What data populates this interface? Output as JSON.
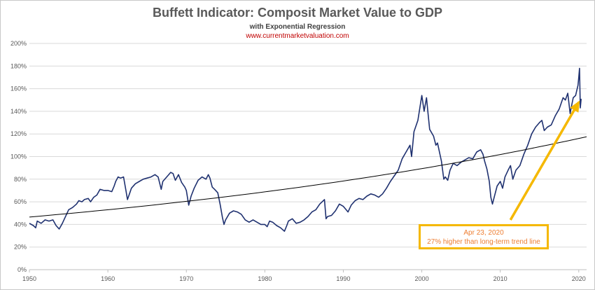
{
  "chart_data": {
    "type": "line",
    "title": "Buffett Indicator: Composit Market Value to GDP",
    "subtitle": "with Exponential Regression",
    "source": "www.currentmarketvaluation.com",
    "xlim": [
      1950,
      2021
    ],
    "ylim": [
      0,
      200
    ],
    "x_ticks": [
      "1950",
      "1960",
      "1970",
      "1980",
      "1990",
      "2000",
      "2010",
      "2020"
    ],
    "y_ticks": [
      "0%",
      "20%",
      "40%",
      "60%",
      "80%",
      "100%",
      "120%",
      "140%",
      "160%",
      "180%",
      "200%"
    ],
    "grid": "horizontal",
    "series": [
      {
        "key": "market_value_to_gdp",
        "color": "#1f3170",
        "points": [
          [
            1950,
            41
          ],
          [
            1950.5,
            39
          ],
          [
            1950.8,
            37
          ],
          [
            1951,
            43
          ],
          [
            1951.5,
            41
          ],
          [
            1952,
            44
          ],
          [
            1952.5,
            43
          ],
          [
            1953,
            44
          ],
          [
            1953.4,
            39
          ],
          [
            1953.8,
            36
          ],
          [
            1954.2,
            41
          ],
          [
            1954.6,
            47
          ],
          [
            1955,
            53
          ],
          [
            1955.5,
            55
          ],
          [
            1956,
            58
          ],
          [
            1956.3,
            61
          ],
          [
            1956.7,
            60
          ],
          [
            1957,
            62
          ],
          [
            1957.5,
            63
          ],
          [
            1957.8,
            60
          ],
          [
            1958.2,
            64
          ],
          [
            1958.6,
            66
          ],
          [
            1959,
            71
          ],
          [
            1959.5,
            70
          ],
          [
            1960,
            70
          ],
          [
            1960.5,
            69
          ],
          [
            1960.8,
            74
          ],
          [
            1961,
            78
          ],
          [
            1961.3,
            82
          ],
          [
            1961.6,
            81
          ],
          [
            1962,
            82
          ],
          [
            1962.3,
            70
          ],
          [
            1962.5,
            62
          ],
          [
            1962.8,
            68
          ],
          [
            1963,
            72
          ],
          [
            1963.5,
            76
          ],
          [
            1964,
            78
          ],
          [
            1964.5,
            80
          ],
          [
            1965,
            81
          ],
          [
            1965.5,
            82
          ],
          [
            1966,
            84
          ],
          [
            1966.4,
            82
          ],
          [
            1966.8,
            71
          ],
          [
            1967,
            78
          ],
          [
            1967.5,
            82
          ],
          [
            1968,
            86
          ],
          [
            1968.3,
            85
          ],
          [
            1968.6,
            79
          ],
          [
            1969,
            84
          ],
          [
            1969.4,
            77
          ],
          [
            1969.8,
            73
          ],
          [
            1970,
            70
          ],
          [
            1970.3,
            57
          ],
          [
            1970.6,
            65
          ],
          [
            1971,
            72
          ],
          [
            1971.5,
            79
          ],
          [
            1972,
            82
          ],
          [
            1972.5,
            80
          ],
          [
            1972.8,
            84
          ],
          [
            1973,
            81
          ],
          [
            1973.3,
            73
          ],
          [
            1973.6,
            71
          ],
          [
            1974,
            68
          ],
          [
            1974.3,
            58
          ],
          [
            1974.6,
            46
          ],
          [
            1974.8,
            40
          ],
          [
            1975,
            44
          ],
          [
            1975.5,
            50
          ],
          [
            1976,
            52
          ],
          [
            1976.5,
            51
          ],
          [
            1977,
            49
          ],
          [
            1977.5,
            44
          ],
          [
            1978,
            42
          ],
          [
            1978.5,
            44
          ],
          [
            1979,
            42
          ],
          [
            1979.5,
            40
          ],
          [
            1980,
            40
          ],
          [
            1980.3,
            38
          ],
          [
            1980.6,
            43
          ],
          [
            1981,
            42
          ],
          [
            1981.5,
            39
          ],
          [
            1982,
            37
          ],
          [
            1982.5,
            34
          ],
          [
            1982.8,
            39
          ],
          [
            1983,
            43
          ],
          [
            1983.5,
            45
          ],
          [
            1984,
            41
          ],
          [
            1984.5,
            42
          ],
          [
            1985,
            44
          ],
          [
            1985.5,
            47
          ],
          [
            1986,
            51
          ],
          [
            1986.5,
            53
          ],
          [
            1987,
            58
          ],
          [
            1987.6,
            62
          ],
          [
            1987.8,
            45
          ],
          [
            1988,
            47
          ],
          [
            1988.5,
            48
          ],
          [
            1989,
            52
          ],
          [
            1989.5,
            58
          ],
          [
            1990,
            56
          ],
          [
            1990.6,
            51
          ],
          [
            1991,
            57
          ],
          [
            1991.5,
            61
          ],
          [
            1992,
            63
          ],
          [
            1992.5,
            62
          ],
          [
            1993,
            65
          ],
          [
            1993.5,
            67
          ],
          [
            1994,
            66
          ],
          [
            1994.5,
            64
          ],
          [
            1995,
            67
          ],
          [
            1995.5,
            72
          ],
          [
            1996,
            78
          ],
          [
            1996.5,
            83
          ],
          [
            1997,
            88
          ],
          [
            1997.5,
            98
          ],
          [
            1998,
            104
          ],
          [
            1998.5,
            110
          ],
          [
            1998.7,
            100
          ],
          [
            1999,
            122
          ],
          [
            1999.5,
            132
          ],
          [
            1999.8,
            145
          ],
          [
            2000,
            154
          ],
          [
            2000.3,
            140
          ],
          [
            2000.6,
            152
          ],
          [
            2000.8,
            138
          ],
          [
            2001,
            124
          ],
          [
            2001.5,
            118
          ],
          [
            2001.8,
            110
          ],
          [
            2002,
            112
          ],
          [
            2002.5,
            96
          ],
          [
            2002.8,
            80
          ],
          [
            2003,
            82
          ],
          [
            2003.3,
            79
          ],
          [
            2003.6,
            88
          ],
          [
            2004,
            94
          ],
          [
            2004.5,
            92
          ],
          [
            2005,
            95
          ],
          [
            2005.5,
            97
          ],
          [
            2006,
            99
          ],
          [
            2006.5,
            98
          ],
          [
            2007,
            104
          ],
          [
            2007.5,
            106
          ],
          [
            2007.8,
            102
          ],
          [
            2008,
            96
          ],
          [
            2008.3,
            89
          ],
          [
            2008.6,
            78
          ],
          [
            2008.8,
            64
          ],
          [
            2009,
            58
          ],
          [
            2009.3,
            66
          ],
          [
            2009.6,
            74
          ],
          [
            2010,
            78
          ],
          [
            2010.3,
            72
          ],
          [
            2010.6,
            82
          ],
          [
            2011,
            88
          ],
          [
            2011.3,
            92
          ],
          [
            2011.6,
            80
          ],
          [
            2012,
            88
          ],
          [
            2012.5,
            92
          ],
          [
            2013,
            102
          ],
          [
            2013.5,
            110
          ],
          [
            2014,
            120
          ],
          [
            2014.5,
            126
          ],
          [
            2015,
            130
          ],
          [
            2015.3,
            132
          ],
          [
            2015.6,
            123
          ],
          [
            2016,
            126
          ],
          [
            2016.5,
            128
          ],
          [
            2017,
            136
          ],
          [
            2017.5,
            142
          ],
          [
            2018,
            152
          ],
          [
            2018.3,
            150
          ],
          [
            2018.6,
            156
          ],
          [
            2018.9,
            138
          ],
          [
            2019,
            142
          ],
          [
            2019.3,
            152
          ],
          [
            2019.6,
            154
          ],
          [
            2019.9,
            163
          ],
          [
            2020,
            170
          ],
          [
            2020.1,
            178
          ],
          [
            2020.2,
            143
          ],
          [
            2020.3,
            151
          ]
        ]
      },
      {
        "key": "exponential_regression",
        "color": "#000000",
        "x": [
          1950,
          2021
        ],
        "y": [
          46.5,
          117.5
        ]
      }
    ],
    "annotation": {
      "line1": "Apr 23, 2020",
      "line2": "27% higher than long-term trend line",
      "arrow_from": [
        2011.3,
        44
      ],
      "arrow_to": [
        2020,
        148
      ],
      "color": "#f5b800"
    }
  }
}
